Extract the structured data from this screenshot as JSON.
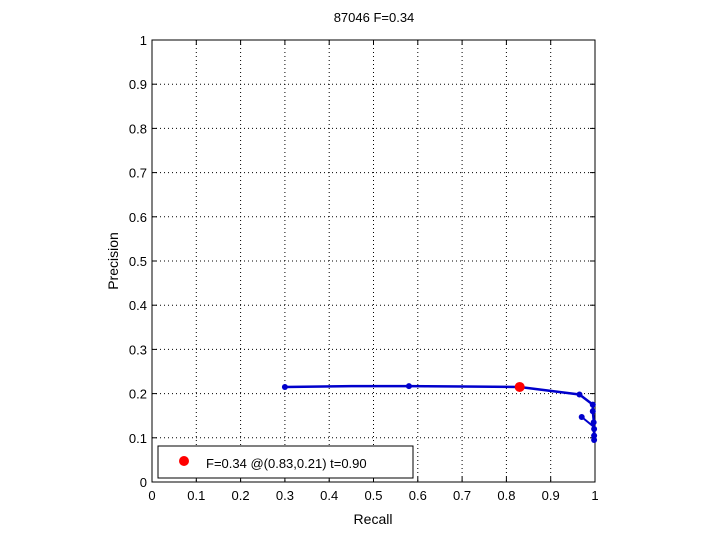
{
  "chart_data": {
    "type": "line",
    "title": "87046 F=0.34",
    "xlabel": "Recall",
    "ylabel": "Precision",
    "xlim": [
      0,
      1
    ],
    "ylim": [
      0,
      1
    ],
    "grid": true,
    "xticks": [
      "0",
      "0.1",
      "0.2",
      "0.3",
      "0.4",
      "0.5",
      "0.6",
      "0.7",
      "0.8",
      "0.9",
      "1"
    ],
    "yticks": [
      "0",
      "0.1",
      "0.2",
      "0.3",
      "0.4",
      "0.5",
      "0.6",
      "0.7",
      "0.8",
      "0.9",
      "1"
    ],
    "series": [
      {
        "color": "#0000cc",
        "x": [
          0.3,
          0.45,
          0.58,
          0.7,
          0.83,
          0.965,
          0.995,
          0.995,
          0.997,
          0.997,
          0.998,
          0.998
        ],
        "y": [
          0.215,
          0.217,
          0.217,
          0.216,
          0.215,
          0.198,
          0.175,
          0.16,
          0.14,
          0.125,
          0.11,
          0.095
        ],
        "markers": [
          {
            "x": 0.3,
            "y": 0.215
          },
          {
            "x": 0.58,
            "y": 0.217
          },
          {
            "x": 0.965,
            "y": 0.198
          },
          {
            "x": 0.97,
            "y": 0.147
          },
          {
            "x": 0.995,
            "y": 0.175
          },
          {
            "x": 0.995,
            "y": 0.16
          },
          {
            "x": 0.997,
            "y": 0.135
          },
          {
            "x": 0.998,
            "y": 0.12
          },
          {
            "x": 0.998,
            "y": 0.105
          },
          {
            "x": 0.998,
            "y": 0.095
          }
        ],
        "branch": {
          "x": [
            0.97,
            0.997
          ],
          "y": [
            0.147,
            0.125
          ]
        }
      }
    ],
    "best_point": {
      "x": 0.83,
      "y": 0.215,
      "color": "#ff0000"
    },
    "legend": {
      "position": "bottom-left",
      "label": "F=0.34 @(0.83,0.21) t=0.90",
      "marker_color": "#ff0000"
    }
  }
}
